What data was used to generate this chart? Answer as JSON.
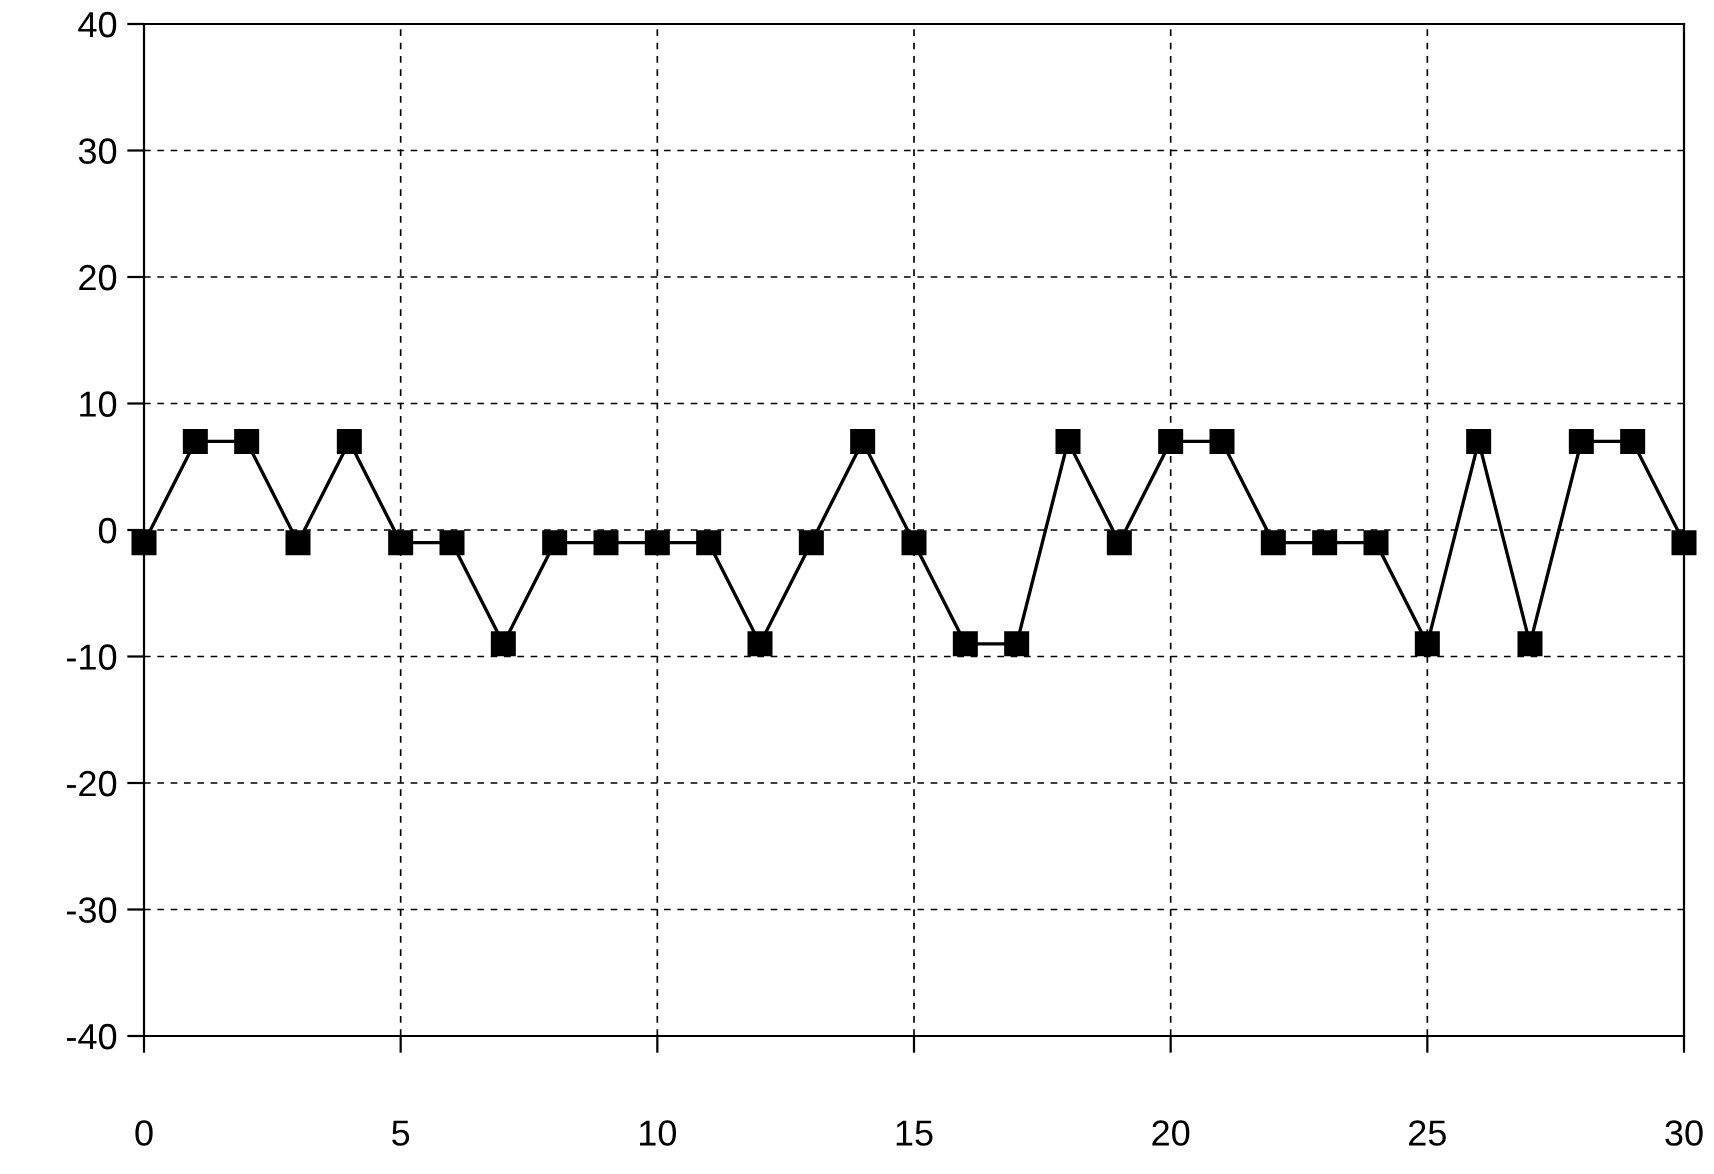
{
  "chart_data": {
    "type": "line",
    "x": [
      0,
      1,
      2,
      3,
      4,
      5,
      6,
      7,
      8,
      9,
      10,
      11,
      12,
      13,
      14,
      15,
      16,
      17,
      18,
      19,
      20,
      21,
      22,
      23,
      24,
      25,
      26,
      27,
      28,
      29,
      30
    ],
    "series": [
      {
        "color": "#000000",
        "values": [
          -1,
          7,
          7,
          -1,
          7,
          -1,
          -1,
          -9,
          -1,
          -1,
          -1,
          -1,
          -9,
          -1,
          7,
          -1,
          -9,
          -9,
          7,
          -1,
          7,
          7,
          -1,
          -1,
          -1,
          -9,
          7,
          -9,
          7,
          7,
          -1
        ]
      }
    ],
    "xlim": [
      0,
      30
    ],
    "xticks": [
      0,
      5,
      10,
      15,
      20,
      25,
      30
    ],
    "ylim": [
      -40,
      40
    ],
    "yticks": [
      -40,
      -30,
      -20,
      -10,
      0,
      10,
      20,
      30,
      40
    ],
    "grid": true,
    "marker": "square",
    "line_style": "solid",
    "legend": false
  }
}
